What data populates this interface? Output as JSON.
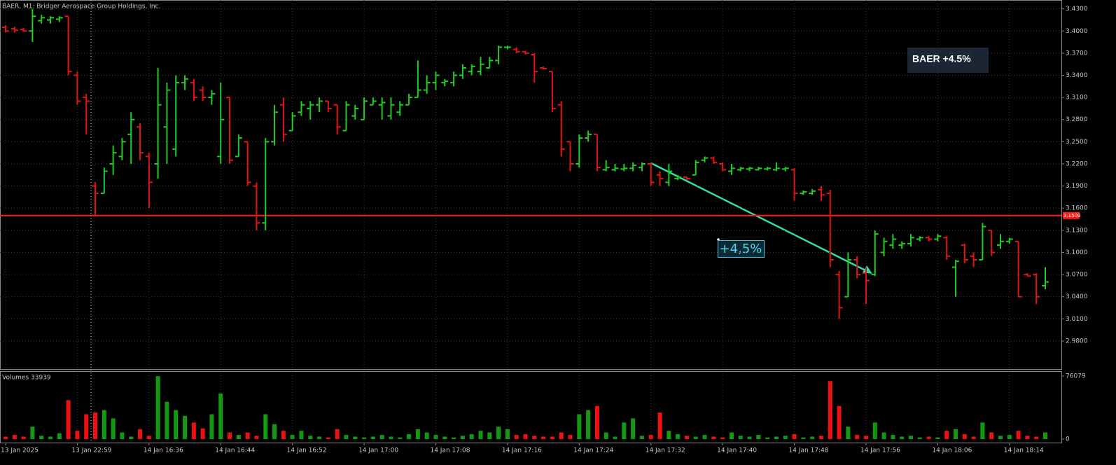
{
  "chart_data": {
    "type": "ohlc",
    "title": "BAER, M1:  Bridger Aerospace Group Holdings, Inc.",
    "up_color": "#22cc22",
    "down_color": "#e01515",
    "grid": true,
    "ylim": [
      2.942,
      3.442
    ],
    "yticks": [
      {
        "value": 2.98,
        "label": "2.9800"
      },
      {
        "value": 3.01,
        "label": "3.0100"
      },
      {
        "value": 3.04,
        "label": "3.0400"
      },
      {
        "value": 3.07,
        "label": "3.0700"
      },
      {
        "value": 3.1,
        "label": "3.1000"
      },
      {
        "value": 3.13,
        "label": "3.1300"
      },
      {
        "value": 3.16,
        "label": "3.1600"
      },
      {
        "value": 3.19,
        "label": "3.1900"
      },
      {
        "value": 3.22,
        "label": "3.2200"
      },
      {
        "value": 3.25,
        "label": "3.2500"
      },
      {
        "value": 3.28,
        "label": "3.2800"
      },
      {
        "value": 3.31,
        "label": "3.3100"
      },
      {
        "value": 3.34,
        "label": "3.3400"
      },
      {
        "value": 3.37,
        "label": "3.3700"
      },
      {
        "value": 3.4,
        "label": "3.4000"
      },
      {
        "value": 3.43,
        "label": "3.4300"
      }
    ],
    "hline": {
      "value": 3.15,
      "label": "3.1500",
      "color": "#ff1a1a"
    },
    "categories": [
      "13 Jan 2025",
      null,
      null,
      null,
      null,
      null,
      null,
      null,
      "13 Jan 22:59",
      null,
      null,
      null,
      null,
      null,
      null,
      null,
      "14 Jan 16:36",
      null,
      null,
      null,
      null,
      null,
      null,
      null,
      "14 Jan 16:44",
      null,
      null,
      null,
      null,
      null,
      null,
      null,
      "14 Jan 16:52",
      null,
      null,
      null,
      null,
      null,
      null,
      null,
      "14 Jan 17:00",
      null,
      null,
      null,
      null,
      null,
      null,
      null,
      "14 Jan 17:08",
      null,
      null,
      null,
      null,
      null,
      null,
      null,
      "14 Jan 17:16",
      null,
      null,
      null,
      null,
      null,
      null,
      null,
      "14 Jan 17:24",
      null,
      null,
      null,
      null,
      null,
      null,
      null,
      "14 Jan 17:32",
      null,
      null,
      null,
      null,
      null,
      null,
      null,
      "14 Jan 17:40",
      null,
      null,
      null,
      null,
      null,
      null,
      null,
      "14 Jan 17:48",
      null,
      null,
      null,
      null,
      null,
      null,
      null,
      "14 Jan 17:56",
      null,
      null,
      null,
      null,
      null,
      null,
      null,
      "14 Jan 18:06",
      null,
      null,
      null,
      null,
      null,
      null,
      null,
      "14 Jan 18:14",
      null,
      null,
      null,
      null
    ],
    "ohlc": [
      [
        3.405,
        3.408,
        3.398,
        3.4
      ],
      [
        3.403,
        3.406,
        3.398,
        3.401
      ],
      [
        3.402,
        3.404,
        3.399,
        3.4
      ],
      [
        3.4,
        3.43,
        3.385,
        3.42
      ],
      [
        3.414,
        3.422,
        3.41,
        3.418
      ],
      [
        3.415,
        3.42,
        3.41,
        3.418
      ],
      [
        3.416,
        3.42,
        3.412,
        3.418
      ],
      [
        3.42,
        3.42,
        3.34,
        3.345
      ],
      [
        3.34,
        3.345,
        3.3,
        3.305
      ],
      [
        3.31,
        3.315,
        3.26,
        3.305
      ],
      [
        3.19,
        3.195,
        3.15,
        3.18
      ],
      [
        3.18,
        3.215,
        3.18,
        3.21
      ],
      [
        3.22,
        3.245,
        3.205,
        3.235
      ],
      [
        3.23,
        3.255,
        3.225,
        3.25
      ],
      [
        3.26,
        3.29,
        3.22,
        3.28
      ],
      [
        3.27,
        3.275,
        3.225,
        3.235
      ],
      [
        3.23,
        3.235,
        3.16,
        3.195
      ],
      [
        3.22,
        3.35,
        3.2,
        3.3
      ],
      [
        3.27,
        3.33,
        3.22,
        3.32
      ],
      [
        3.24,
        3.34,
        3.23,
        3.33
      ],
      [
        3.33,
        3.34,
        3.32,
        3.335
      ],
      [
        3.33,
        3.335,
        3.305,
        3.31
      ],
      [
        3.32,
        3.325,
        3.305,
        3.31
      ],
      [
        3.31,
        3.32,
        3.3,
        3.315
      ],
      [
        3.23,
        3.33,
        3.22,
        3.28
      ],
      [
        3.31,
        3.31,
        3.22,
        3.225
      ],
      [
        3.23,
        3.26,
        3.23,
        3.255
      ],
      [
        3.25,
        3.25,
        3.19,
        3.195
      ],
      [
        3.19,
        3.195,
        3.13,
        3.14
      ],
      [
        3.14,
        3.255,
        3.13,
        3.25
      ],
      [
        3.25,
        3.3,
        3.245,
        3.29
      ],
      [
        3.3,
        3.31,
        3.25,
        3.26
      ],
      [
        3.265,
        3.29,
        3.265,
        3.285
      ],
      [
        3.29,
        3.305,
        3.285,
        3.3
      ],
      [
        3.295,
        3.305,
        3.28,
        3.3
      ],
      [
        3.3,
        3.31,
        3.29,
        3.305
      ],
      [
        3.305,
        3.305,
        3.29,
        3.295
      ],
      [
        3.3,
        3.3,
        3.26,
        3.27
      ],
      [
        3.265,
        3.305,
        3.265,
        3.3
      ],
      [
        3.285,
        3.3,
        3.28,
        3.295
      ],
      [
        3.28,
        3.31,
        3.28,
        3.305
      ],
      [
        3.3,
        3.31,
        3.3,
        3.305
      ],
      [
        3.3,
        3.31,
        3.28,
        3.303
      ],
      [
        3.285,
        3.31,
        3.28,
        3.3
      ],
      [
        3.29,
        3.305,
        3.285,
        3.3
      ],
      [
        3.3,
        3.315,
        3.3,
        3.31
      ],
      [
        3.31,
        3.36,
        3.31,
        3.32
      ],
      [
        3.32,
        3.34,
        3.315,
        3.33
      ],
      [
        3.33,
        3.345,
        3.32,
        3.34
      ],
      [
        3.33,
        3.335,
        3.325,
        3.332
      ],
      [
        3.33,
        3.345,
        3.325,
        3.34
      ],
      [
        3.34,
        3.355,
        3.335,
        3.35
      ],
      [
        3.345,
        3.355,
        3.34,
        3.352
      ],
      [
        3.345,
        3.365,
        3.34,
        3.355
      ],
      [
        3.35,
        3.365,
        3.35,
        3.36
      ],
      [
        3.36,
        3.38,
        3.355,
        3.378
      ],
      [
        3.378,
        3.38,
        3.375,
        3.378
      ],
      [
        3.375,
        3.378,
        3.37,
        3.372
      ],
      [
        3.372,
        3.373,
        3.368,
        3.37
      ],
      [
        3.368,
        3.37,
        3.33,
        3.345
      ],
      [
        3.35,
        3.352,
        3.348,
        3.349
      ],
      [
        3.345,
        3.345,
        3.29,
        3.295
      ],
      [
        3.3,
        3.305,
        3.23,
        3.24
      ],
      [
        3.25,
        3.25,
        3.21,
        3.22
      ],
      [
        3.22,
        3.26,
        3.215,
        3.255
      ],
      [
        3.255,
        3.265,
        3.25,
        3.26
      ],
      [
        3.26,
        3.26,
        3.21,
        3.215
      ],
      [
        3.212,
        3.225,
        3.21,
        3.215
      ],
      [
        3.212,
        3.22,
        3.21,
        3.214
      ],
      [
        3.213,
        3.22,
        3.21,
        3.214
      ],
      [
        3.214,
        3.222,
        3.21,
        3.218
      ],
      [
        3.215,
        3.222,
        3.21,
        3.22
      ],
      [
        3.22,
        3.222,
        3.19,
        3.195
      ],
      [
        3.205,
        3.21,
        3.19,
        3.2
      ],
      [
        3.195,
        3.22,
        3.19,
        3.21
      ],
      [
        3.2,
        3.205,
        3.198,
        3.202
      ],
      [
        3.202,
        3.203,
        3.198,
        3.2
      ],
      [
        3.205,
        3.225,
        3.205,
        3.222
      ],
      [
        3.225,
        3.23,
        3.222,
        3.228
      ],
      [
        3.228,
        3.23,
        3.22,
        3.222
      ],
      [
        3.22,
        3.222,
        3.21,
        3.212
      ],
      [
        3.21,
        3.22,
        3.205,
        3.214
      ],
      [
        3.212,
        3.216,
        3.21,
        3.214
      ],
      [
        3.213,
        3.216,
        3.21,
        3.214
      ],
      [
        3.212,
        3.216,
        3.211,
        3.214
      ],
      [
        3.213,
        3.216,
        3.211,
        3.214
      ],
      [
        3.212,
        3.222,
        3.21,
        3.214
      ],
      [
        3.213,
        3.216,
        3.21,
        3.214
      ],
      [
        3.212,
        3.214,
        3.17,
        3.18
      ],
      [
        3.18,
        3.184,
        3.178,
        3.182
      ],
      [
        3.18,
        3.186,
        3.178,
        3.183
      ],
      [
        3.185,
        3.19,
        3.17,
        3.178
      ],
      [
        3.18,
        3.185,
        3.08,
        3.09
      ],
      [
        3.07,
        3.075,
        3.01,
        3.025
      ],
      [
        3.04,
        3.1,
        3.04,
        3.09
      ],
      [
        3.09,
        3.095,
        3.065,
        3.07
      ],
      [
        3.072,
        3.08,
        3.03,
        3.062
      ],
      [
        3.07,
        3.13,
        3.068,
        3.125
      ],
      [
        3.1,
        3.12,
        3.095,
        3.115
      ],
      [
        3.11,
        3.125,
        3.105,
        3.118
      ],
      [
        3.11,
        3.115,
        3.105,
        3.112
      ],
      [
        3.112,
        3.125,
        3.108,
        3.12
      ],
      [
        3.118,
        3.122,
        3.115,
        3.12
      ],
      [
        3.12,
        3.122,
        3.115,
        3.118
      ],
      [
        3.118,
        3.125,
        3.115,
        3.122
      ],
      [
        3.12,
        3.122,
        3.09,
        3.095
      ],
      [
        3.08,
        3.09,
        3.04,
        3.088
      ],
      [
        3.11,
        3.112,
        3.085,
        3.09
      ],
      [
        3.095,
        3.1,
        3.08,
        3.09
      ],
      [
        3.09,
        3.14,
        3.09,
        3.135
      ],
      [
        3.13,
        3.13,
        3.095,
        3.1
      ],
      [
        3.11,
        3.125,
        3.105,
        3.115
      ],
      [
        3.115,
        3.12,
        3.112,
        3.118
      ],
      [
        3.115,
        3.115,
        3.04,
        3.04
      ],
      [
        3.07,
        3.072,
        3.068,
        3.068
      ],
      [
        3.07,
        3.072,
        3.03,
        3.04
      ],
      [
        3.055,
        3.08,
        3.05,
        3.06
      ]
    ],
    "volume": {
      "title": "Volumes 33939",
      "ylim": [
        0,
        76079
      ],
      "yticks": [
        0,
        76079
      ],
      "values": [
        3000,
        5000,
        3000,
        15000,
        4000,
        3000,
        7000,
        47000,
        10000,
        30000,
        32000,
        35000,
        25000,
        8000,
        3000,
        12000,
        4000,
        76000,
        45000,
        35000,
        28000,
        20000,
        13000,
        30000,
        55000,
        8000,
        5000,
        8000,
        4000,
        30000,
        18000,
        10000,
        5000,
        10000,
        4000,
        3000,
        2000,
        12000,
        5000,
        3000,
        2000,
        3000,
        5000,
        3000,
        2000,
        6000,
        12000,
        8000,
        5000,
        3000,
        2000,
        4000,
        6000,
        10000,
        8000,
        15000,
        12000,
        5000,
        6000,
        4000,
        3000,
        3000,
        8000,
        5000,
        30000,
        35000,
        40000,
        8000,
        3000,
        20000,
        25000,
        4000,
        5000,
        32000,
        10000,
        6000,
        4000,
        3000,
        5000,
        3000,
        2000,
        8000,
        4000,
        3000,
        5000,
        2000,
        3000,
        4000,
        6000,
        2000,
        3000,
        4000,
        70000,
        40000,
        15000,
        5000,
        4000,
        20000,
        8000,
        5000,
        3000,
        4000,
        2000,
        3000,
        2000,
        10000,
        12000,
        6000,
        3000,
        20000,
        8000,
        4000,
        5000,
        10000,
        4000,
        3000,
        8000
      ]
    },
    "annotations": {
      "box": "BAER +4.5%",
      "arrow_label": "+4,5%"
    }
  }
}
